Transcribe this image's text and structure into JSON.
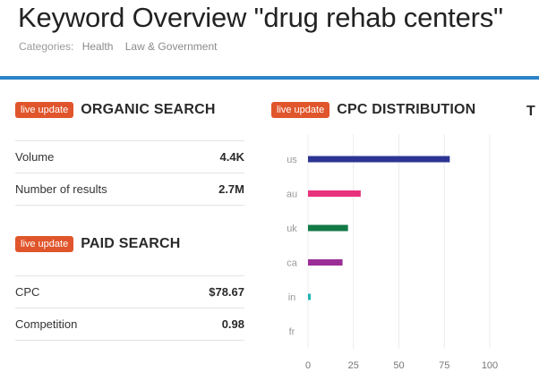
{
  "page": {
    "title": "Keyword Overview \"drug rehab centers\"",
    "categories_label": "Categories:",
    "categories": [
      "Health",
      "Law & Government"
    ]
  },
  "organic": {
    "badge": "live update",
    "title": "ORGANIC SEARCH",
    "rows": [
      {
        "label": "Volume",
        "value": "4.4K"
      },
      {
        "label": "Number of results",
        "value": "2.7M"
      }
    ]
  },
  "paid": {
    "badge": "live update",
    "title": "PAID SEARCH",
    "rows": [
      {
        "label": "CPC",
        "value": "$78.67"
      },
      {
        "label": "Competition",
        "value": "0.98"
      }
    ]
  },
  "cpc": {
    "badge": "live update",
    "title": "CPC DISTRIBUTION"
  },
  "truncated_next_title": "T",
  "chart_data": {
    "type": "bar",
    "orientation": "horizontal",
    "categories": [
      "us",
      "au",
      "uk",
      "ca",
      "in",
      "fr"
    ],
    "values": [
      78,
      29,
      22,
      19,
      1,
      0
    ],
    "colors": [
      "#2c3593",
      "#e8327c",
      "#127a47",
      "#9b2e96",
      "#1fb5b0",
      "#cccccc"
    ],
    "xlim": [
      0,
      100
    ],
    "xticks": [
      0,
      25,
      50,
      75,
      100
    ],
    "grid": true
  }
}
